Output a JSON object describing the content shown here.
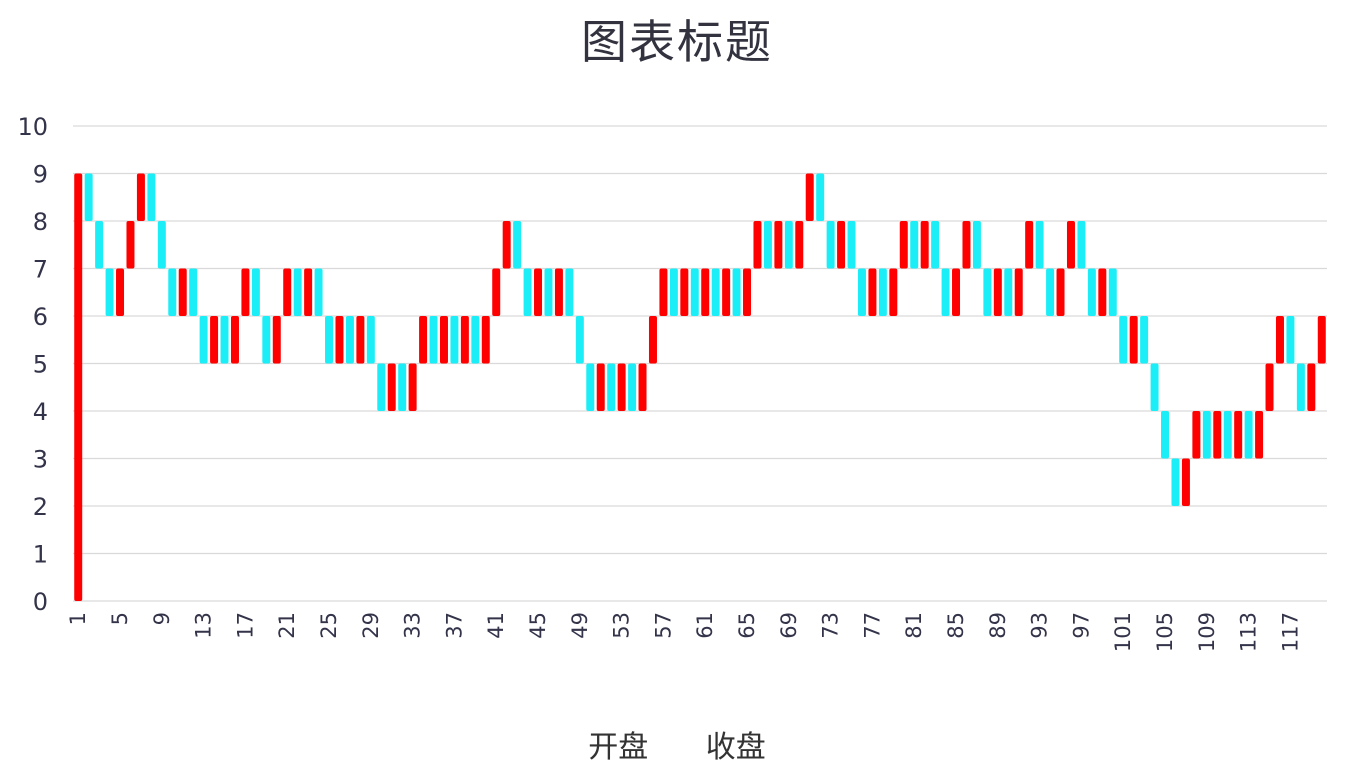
{
  "chart_data": {
    "type": "bar",
    "subtype": "floating-bar (open/close)",
    "title": "图表标题",
    "xlabel": "",
    "ylabel": "",
    "ylim": [
      0,
      10
    ],
    "yticks": [
      0,
      1,
      2,
      3,
      4,
      5,
      6,
      7,
      8,
      9,
      10
    ],
    "xtick_labels": [
      "1",
      "5",
      "9",
      "13",
      "17",
      "21",
      "25",
      "29",
      "33",
      "37",
      "41",
      "45",
      "49",
      "53",
      "57",
      "61",
      "65",
      "69",
      "73",
      "77",
      "81",
      "85",
      "89",
      "93",
      "97",
      "101",
      "105",
      "109",
      "113",
      "117"
    ],
    "grid": true,
    "legend_position": "bottom",
    "legend": [
      "开盘",
      "收盘"
    ],
    "colors": {
      "up": "#FF0000",
      "down": "#1CEEF7",
      "grid": "#D9D9D9"
    },
    "categories_count": 120,
    "series": [
      {
        "name": "开盘",
        "values": [
          0,
          9,
          8,
          7,
          6,
          7,
          8,
          9,
          8,
          7,
          6,
          7,
          6,
          5,
          6,
          5,
          6,
          7,
          6,
          5,
          6,
          7,
          6,
          7,
          6,
          5,
          6,
          5,
          6,
          5,
          4,
          5,
          4,
          5,
          6,
          5,
          6,
          5,
          6,
          5,
          6,
          7,
          8,
          7,
          6,
          7,
          6,
          7,
          6,
          5,
          4,
          5,
          4,
          5,
          4,
          5,
          6,
          7,
          6,
          7,
          6,
          7,
          6,
          7,
          6,
          7,
          8,
          7,
          8,
          7,
          8,
          9,
          8,
          7,
          8,
          7,
          6,
          7,
          6,
          7,
          8,
          7,
          8,
          7,
          6,
          7,
          8,
          7,
          6,
          7,
          6,
          7,
          8,
          7,
          6,
          7,
          8,
          7,
          6,
          7,
          6,
          5,
          6,
          5,
          4,
          3,
          2,
          3,
          4,
          3,
          4,
          3,
          4,
          3,
          4,
          5,
          6,
          5,
          4,
          5
        ]
      },
      {
        "name": "收盘",
        "values": [
          9,
          8,
          7,
          6,
          7,
          8,
          9,
          8,
          7,
          6,
          7,
          6,
          5,
          6,
          5,
          6,
          7,
          6,
          5,
          6,
          7,
          6,
          7,
          6,
          5,
          6,
          5,
          6,
          5,
          4,
          5,
          4,
          5,
          6,
          5,
          6,
          5,
          6,
          5,
          6,
          7,
          8,
          7,
          6,
          7,
          6,
          7,
          6,
          5,
          4,
          5,
          4,
          5,
          4,
          5,
          6,
          7,
          6,
          7,
          6,
          7,
          6,
          7,
          6,
          7,
          8,
          7,
          8,
          7,
          8,
          9,
          8,
          7,
          8,
          7,
          6,
          7,
          6,
          7,
          8,
          7,
          8,
          7,
          6,
          7,
          8,
          7,
          6,
          7,
          6,
          7,
          8,
          7,
          6,
          7,
          8,
          7,
          6,
          7,
          6,
          5,
          6,
          5,
          4,
          3,
          2,
          3,
          4,
          3,
          4,
          3,
          4,
          3,
          4,
          5,
          6,
          5,
          4,
          5,
          6
        ]
      }
    ]
  },
  "legend": {
    "open_label": "开盘",
    "close_label": "收盘"
  }
}
